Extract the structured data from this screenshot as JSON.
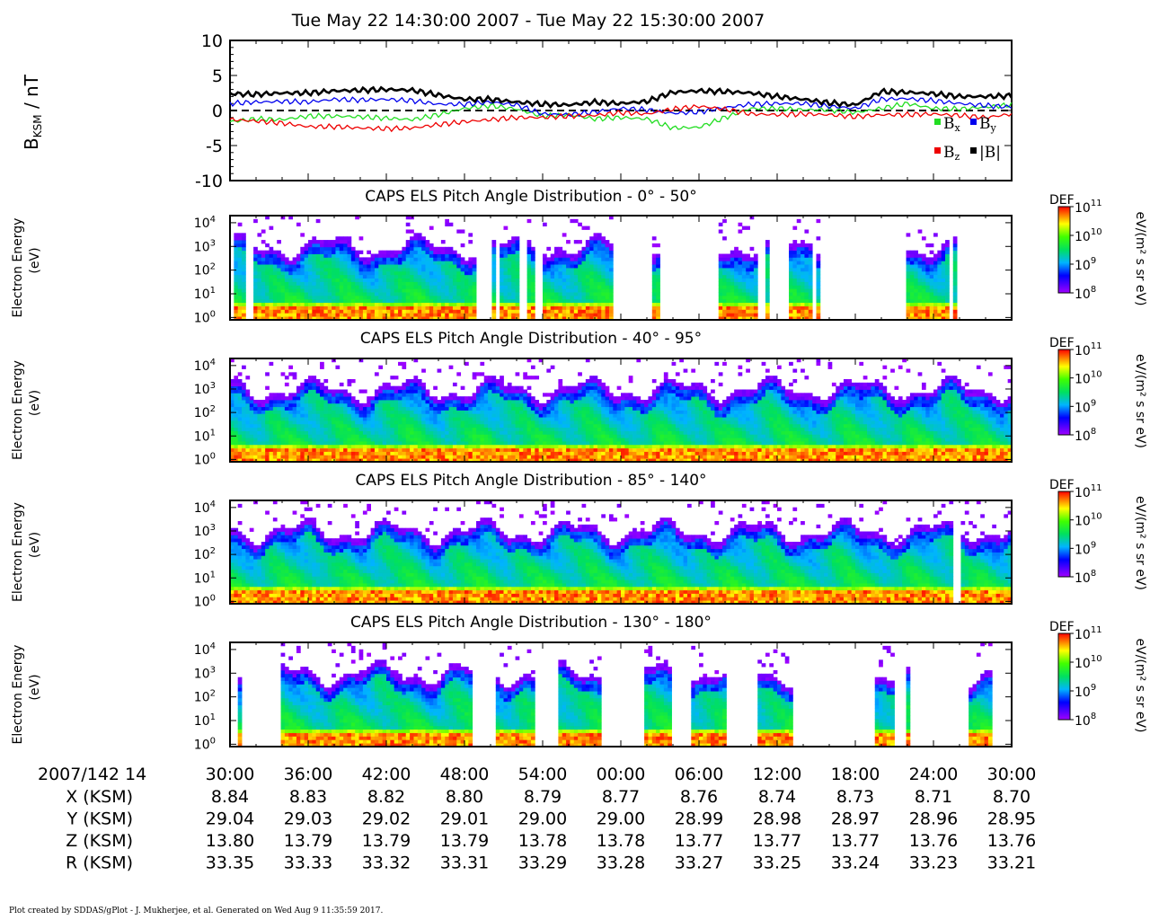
{
  "title": "Tue May 22 14:30:00 2007 - Tue May 22 15:30:00 2007",
  "footer": "Plot created by SDDAS/gPlot - J. Mukherjee, et al.  Generated on Wed Aug 9 11:35:59 2017.",
  "colors": {
    "bx": "#22dd22",
    "by": "#0000ee",
    "bz": "#ee0000",
    "btot": "#000000"
  },
  "chart_data": [
    {
      "type": "line",
      "ylabel": "B",
      "ylabel_sub": "KSM",
      "ylabel_unit": "/ nT",
      "ylim": [
        -10,
        10
      ],
      "yticks": [
        10,
        5,
        0,
        -5,
        -10
      ],
      "xlim": [
        0,
        60
      ],
      "x": [
        0,
        2,
        4,
        6,
        8,
        10,
        12,
        14,
        16,
        18,
        20,
        22,
        24,
        26,
        28,
        30,
        32,
        34,
        36,
        38,
        40,
        42,
        44,
        46,
        48,
        50,
        52,
        54,
        56,
        58,
        60
      ],
      "legend": [
        "B",
        "x",
        "B",
        "y",
        "B",
        "z",
        "|B|"
      ],
      "series": [
        {
          "key": "bx",
          "values": [
            -1.6,
            -1.2,
            -1.3,
            -0.8,
            -0.8,
            -0.9,
            -1.1,
            -1.3,
            -0.6,
            0.3,
            0.7,
            0.2,
            -0.8,
            -0.6,
            -1.2,
            -1.0,
            -1.2,
            -2.5,
            -2.4,
            -1.0,
            0.3,
            0.3,
            0.1,
            0.1,
            -0.3,
            0.3,
            1.0,
            0.3,
            0.2,
            0.5,
            0.8
          ]
        },
        {
          "key": "by",
          "values": [
            1.0,
            1.2,
            1.3,
            1.2,
            1.6,
            1.5,
            1.6,
            1.4,
            0.9,
            0.9,
            1.2,
            0.8,
            -0.5,
            -0.6,
            -0.2,
            0.3,
            0.1,
            -0.4,
            -0.2,
            0.4,
            0.9,
            1.0,
            1.0,
            0.6,
            0.3,
            1.6,
            1.7,
            1.4,
            1.0,
            0.7,
            0.5
          ]
        },
        {
          "key": "bz",
          "values": [
            -1.3,
            -1.5,
            -1.8,
            -2.3,
            -2.3,
            -2.5,
            -2.6,
            -2.5,
            -2.0,
            -1.6,
            -1.3,
            -1.0,
            -1.0,
            -0.8,
            -0.7,
            -0.3,
            -0.5,
            0.2,
            0.6,
            0.2,
            -0.5,
            -0.6,
            -0.5,
            -0.6,
            -0.9,
            -0.6,
            -0.6,
            -0.5,
            -0.7,
            -1.0,
            -0.5
          ]
        },
        {
          "key": "btot",
          "values": [
            2.4,
            2.3,
            2.5,
            2.5,
            2.8,
            2.9,
            3.0,
            2.9,
            2.2,
            1.6,
            1.6,
            1.2,
            0.9,
            0.8,
            1.2,
            1.0,
            1.3,
            2.6,
            2.8,
            2.7,
            2.5,
            2.0,
            1.6,
            1.1,
            0.8,
            2.7,
            2.6,
            2.4,
            2.0,
            2.0,
            2.1
          ]
        }
      ]
    },
    {
      "type": "heatmap",
      "title": "CAPS ELS Pitch Angle Distribution - 0° - 50°",
      "ylabel": "Electron Energy",
      "ylabel2": "(eV)",
      "ylim_log10": [
        -0.1,
        4.3
      ],
      "zlabel": "DEF",
      "zunit": "eV/(m² s sr eV)",
      "zlim_log10": [
        8,
        11
      ],
      "coverage_minutes": [
        [
          0.3,
          1.2
        ],
        [
          1.8,
          18.8
        ],
        [
          20,
          20.3
        ],
        [
          20.8,
          22.3
        ],
        [
          22.8,
          23.3
        ],
        [
          23.9,
          29.5
        ],
        [
          32.3,
          32.9
        ],
        [
          37.6,
          40.6
        ],
        [
          41.1,
          41.3
        ],
        [
          42.9,
          44.7
        ],
        [
          45.1,
          45.4
        ],
        [
          51.8,
          55.2
        ],
        [
          55.6,
          55.9
        ]
      ]
    },
    {
      "type": "heatmap",
      "title": "CAPS ELS Pitch Angle Distribution - 40° - 95°",
      "ylabel": "Electron Energy",
      "ylabel2": "(eV)",
      "ylim_log10": [
        -0.1,
        4.3
      ],
      "zlabel": "DEF",
      "zunit": "eV/(m² s sr eV)",
      "zlim_log10": [
        8,
        11
      ],
      "coverage_minutes": [
        [
          0,
          60
        ]
      ]
    },
    {
      "type": "heatmap",
      "title": "CAPS ELS Pitch Angle Distribution - 85° - 140°",
      "ylabel": "Electron Energy",
      "ylabel2": "(eV)",
      "ylim_log10": [
        -0.1,
        4.3
      ],
      "zlabel": "DEF",
      "zunit": "eV/(m² s sr eV)",
      "zlim_log10": [
        8,
        11
      ],
      "coverage_minutes": [
        [
          0,
          55.5
        ],
        [
          56,
          60
        ]
      ]
    },
    {
      "type": "heatmap",
      "title": "CAPS ELS Pitch Angle Distribution - 130° - 180°",
      "ylabel": "Electron Energy",
      "ylabel2": "(eV)",
      "ylim_log10": [
        -0.1,
        4.3
      ],
      "zlabel": "DEF",
      "zunit": "eV/(m² s sr eV)",
      "zlim_log10": [
        8,
        11
      ],
      "coverage_minutes": [
        [
          0.5,
          1.0
        ],
        [
          3.5,
          3.7
        ],
        [
          4.0,
          18.6
        ],
        [
          20.5,
          23.3
        ],
        [
          25.1,
          28.6
        ],
        [
          31.9,
          33.8
        ],
        [
          35.3,
          38.0
        ],
        [
          39.9,
          40.0
        ],
        [
          40.5,
          43.3
        ],
        [
          49.5,
          51.0
        ],
        [
          52.0,
          52.2
        ],
        [
          56.8,
          58.4
        ]
      ]
    }
  ],
  "x_axis": {
    "date_label": "2007/142 14",
    "ticks": [
      "30:00",
      "36:00",
      "42:00",
      "48:00",
      "54:00",
      "00:00",
      "06:00",
      "12:00",
      "18:00",
      "24:00",
      "30:00"
    ]
  },
  "ephemeris": [
    {
      "label": "X (KSM)",
      "values": [
        "8.84",
        "8.83",
        "8.82",
        "8.80",
        "8.79",
        "8.77",
        "8.76",
        "8.74",
        "8.73",
        "8.71",
        "8.70"
      ]
    },
    {
      "label": "Y (KSM)",
      "values": [
        "29.04",
        "29.03",
        "29.02",
        "29.01",
        "29.00",
        "29.00",
        "28.99",
        "28.98",
        "28.97",
        "28.96",
        "28.95"
      ]
    },
    {
      "label": "Z (KSM)",
      "values": [
        "13.80",
        "13.79",
        "13.79",
        "13.79",
        "13.78",
        "13.78",
        "13.77",
        "13.77",
        "13.77",
        "13.76",
        "13.76"
      ]
    },
    {
      "label": "R (KSM)",
      "values": [
        "33.35",
        "33.33",
        "33.32",
        "33.31",
        "33.29",
        "33.28",
        "33.27",
        "33.25",
        "33.24",
        "33.23",
        "33.21"
      ]
    }
  ]
}
